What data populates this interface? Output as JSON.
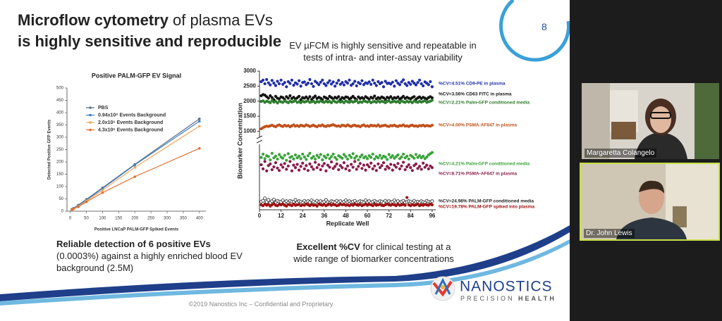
{
  "slide": {
    "title_bold": "Microflow cytometry",
    "title_rest": " of plasma EVs",
    "title_line2": "is highly sensitive and reproducible",
    "page_number": "8",
    "left_note": {
      "bold": "Reliable detection of 6 positive EVs",
      "text": "(0.0003%) against a highly enriched blood EV background (2.5M)"
    },
    "right_heading": "EV µFCM is highly sensitive and repeatable in tests of intra- and inter-assay variability",
    "right_note": {
      "bold": "Excellent %CV",
      "text": " for clinical testing at a wide range of biomarker concentrations"
    },
    "logo": {
      "name": "NANOSTICS",
      "tagline": "PRECISION",
      "tagline_bold": "HEALTH"
    },
    "footer": "©2019 Nanostics Inc – Confidential and Proprietary"
  },
  "chart_data": [
    {
      "type": "line",
      "title": "Positive PALM-GFP EV Signal",
      "x_label": "Positive LNCaP PALM-GFP Spiked Events",
      "y_label": "Detected Positive GFP Events",
      "x": [
        5,
        10,
        25,
        50,
        100,
        200,
        400
      ],
      "xlim": [
        -10,
        420
      ],
      "xticks": [
        0,
        50,
        100,
        150,
        200,
        250,
        300,
        350,
        400
      ],
      "ylim": [
        0,
        500
      ],
      "yticks": [
        0,
        50,
        100,
        150,
        200,
        250,
        300,
        350,
        400,
        450,
        500
      ],
      "legend": "upper-left",
      "series": [
        {
          "name": "PBS",
          "color": "#5b6e86",
          "values": [
            8,
            12,
            25,
            48,
            95,
            190,
            375
          ]
        },
        {
          "name": "0.94x10⁶ Events Background",
          "color": "#3b7fc4",
          "values": [
            7,
            11,
            22,
            45,
            92,
            188,
            365
          ]
        },
        {
          "name": "2.0x10⁶ Events Background",
          "color": "#f2a65a",
          "values": [
            6,
            10,
            20,
            42,
            85,
            178,
            345
          ]
        },
        {
          "name": "4.3x10⁶ Events Background",
          "color": "#e0702c",
          "values": [
            5,
            9,
            18,
            38,
            75,
            140,
            255
          ]
        }
      ]
    },
    {
      "type": "scatter",
      "y_label": "Biomarker Concentration",
      "x_label": "Replicate Well",
      "x": [
        1,
        2,
        3,
        4,
        5,
        6,
        7,
        8,
        9,
        10,
        11,
        12,
        13,
        14,
        15,
        16,
        17,
        18,
        19,
        20,
        21,
        22,
        23,
        24,
        25,
        26,
        27,
        28,
        29,
        30,
        31,
        32,
        33,
        34,
        35,
        36,
        37,
        38,
        39,
        40,
        41,
        42,
        43,
        44,
        45,
        46,
        47,
        48,
        49,
        50,
        51,
        52,
        53,
        54,
        55,
        56,
        57,
        58,
        59,
        60,
        61,
        62,
        63,
        64,
        65,
        66,
        67,
        68,
        69,
        70,
        71,
        72,
        73,
        74,
        75,
        76,
        77,
        78,
        79,
        80,
        81,
        82,
        83,
        84,
        85,
        86,
        87,
        88,
        89,
        90,
        91,
        92,
        93,
        94,
        95,
        96
      ],
      "xlim": [
        0,
        98
      ],
      "xticks": [
        0,
        12,
        24,
        36,
        48,
        60,
        72,
        84,
        96
      ],
      "ylim": [
        800,
        3000
      ],
      "yticks": [
        1000,
        1500,
        2000,
        2500,
        3000
      ],
      "series": [
        {
          "name": "%CV=4.51% CD9-PE in plasma",
          "color": "#1f2fa8",
          "values": [
            2650,
            2700,
            2580,
            2720,
            2610,
            2540,
            2690,
            2600,
            2520,
            2660,
            2580,
            2700,
            2560,
            2620,
            2480,
            2650,
            2590,
            2700,
            2530,
            2610,
            2570,
            2680,
            2500,
            2620,
            2640,
            2550,
            2600,
            2720,
            2580,
            2490,
            2660,
            2610,
            2550,
            2630,
            2700,
            2580,
            2520,
            2610,
            2680,
            2570,
            2640,
            2500,
            2600,
            2690,
            2560,
            2620,
            2540,
            2650,
            2600,
            2700,
            2530,
            2580,
            2660,
            2510,
            2620,
            2580,
            2680,
            2550,
            2610,
            2590,
            2640,
            2560,
            2700,
            2600,
            2520,
            2650,
            2580,
            2620,
            2480,
            2660,
            2590,
            2600,
            2570,
            2630,
            2500,
            2680,
            2600,
            2550,
            2640,
            2710,
            2580,
            2520,
            2620,
            2560,
            2660,
            2600,
            2540,
            2620,
            2700,
            2580,
            2510,
            2640,
            2600,
            2550,
            2650,
            2480
          ]
        },
        {
          "name": "%CV=3.56% CD63 FITC in plasma",
          "color": "#111111",
          "values": [
            2180,
            2220,
            2200,
            2150,
            2100,
            2180,
            2120,
            2050,
            2160,
            2100,
            2080,
            2140,
            2120,
            2060,
            2150,
            2100,
            2180,
            2090,
            2130,
            2070,
            2110,
            2160,
            2050,
            2120,
            2100,
            2140,
            2080,
            2150,
            2060,
            2120,
            2170,
            2090,
            2130,
            2100,
            2050,
            2140,
            2110,
            2080,
            2160,
            2120,
            2070,
            2130,
            2100,
            2150,
            2060,
            2120,
            2090,
            2140,
            2130,
            2070,
            2110,
            2160,
            2100,
            2050,
            2140,
            2090,
            2120,
            2080,
            2150,
            2110,
            2060,
            2130,
            2100,
            2170,
            2080,
            2120,
            2090,
            2140,
            2110,
            2060,
            2130,
            2100,
            2150,
            2080,
            2120,
            2100,
            2140,
            2070,
            2110,
            2160,
            2090,
            2130,
            2100,
            2080,
            2120,
            2150,
            2060,
            2110,
            2140,
            2090,
            2130,
            2100,
            2070,
            2120,
            2150,
            2110
          ]
        },
        {
          "name": "%CV=2.21% Palm-GFP conditioned media",
          "color": "#2e7d2e",
          "values": [
            1990,
            2010,
            1960,
            2000,
            1980,
            1950,
            2020,
            1970,
            1990,
            1940,
            2000,
            1980,
            1960,
            2010,
            1980,
            1950,
            2000,
            1970,
            1990,
            2020,
            1960,
            1980,
            1950,
            2000,
            1970,
            1990,
            2010,
            1960,
            1980,
            2000,
            1950,
            1990,
            1970,
            2010,
            1980,
            1960,
            2000,
            1970,
            1990,
            1950,
            2020,
            1980,
            1960,
            2000,
            1970,
            1990,
            1950,
            2010,
            1980,
            1960,
            2000,
            1970,
            1990,
            2020,
            1950,
            1980,
            1960,
            2010,
            1990,
            1970,
            2000,
            1950,
            1980,
            1990,
            1960,
            2010,
            1970,
            2000,
            1980,
            1950,
            1990,
            2010,
            1960,
            1980,
            2000,
            1970,
            1990,
            1950,
            2010,
            1980,
            1960,
            2000,
            1970,
            1990,
            1950,
            2010,
            1980,
            1960,
            2000,
            1970,
            1990,
            2020,
            1960,
            1980,
            2000,
            2030
          ]
        },
        {
          "name": "%CV=4.00% PSMA-AF647 in plasma",
          "color": "#c0501a",
          "values": [
            1080,
            1120,
            1150,
            1170,
            1160,
            1180,
            1200,
            1170,
            1150,
            1190,
            1210,
            1180,
            1160,
            1200,
            1170,
            1190,
            1150,
            1180,
            1210,
            1170,
            1190,
            1160,
            1200,
            1180,
            1170,
            1210,
            1190,
            1160,
            1180,
            1200,
            1170,
            1150,
            1190,
            1180,
            1210,
            1170,
            1160,
            1190,
            1180,
            1200,
            1220,
            1190,
            1170,
            1180,
            1160,
            1200,
            1190,
            1170,
            1210,
            1180,
            1160,
            1190,
            1200,
            1170,
            1180,
            1150,
            1190,
            1210,
            1170,
            1180,
            1160,
            1200,
            1180,
            1190,
            1170,
            1210,
            1160,
            1180,
            1190,
            1200,
            1170,
            1160,
            1190,
            1180,
            1200,
            1170,
            1160,
            1190,
            1180,
            1210,
            1170,
            1180,
            1160,
            1190,
            1200,
            1170,
            1180,
            1160,
            1190,
            1180,
            1200,
            1170,
            1190,
            1180,
            1170,
            1200
          ]
        }
      ]
    },
    {
      "type": "scatter",
      "ylim": [
        0,
        160
      ],
      "series": [
        {
          "name": "%CV=4.21% Palm-GFP conditioned media",
          "color": "#3aa33a",
          "values": [
            128,
            136,
            125,
            132,
            130,
            122,
            138,
            127,
            131,
            124,
            135,
            129,
            126,
            133,
            121,
            137,
            128,
            130,
            124,
            134,
            127,
            131,
            125,
            136,
            129,
            123,
            132,
            138,
            126,
            130,
            124,
            133,
            128,
            135,
            122,
            131,
            127,
            134,
            125,
            130,
            136,
            128,
            123,
            132,
            129,
            126,
            135,
            130,
            124,
            133,
            128,
            137,
            126,
            131,
            122,
            129,
            134,
            127,
            130,
            125,
            132,
            128,
            136,
            124,
            130,
            127,
            133,
            126,
            131,
            129,
            123,
            135,
            128,
            132,
            126,
            130,
            134,
            125,
            129,
            136,
            127,
            131,
            124,
            133,
            130,
            126,
            135,
            128,
            132,
            127,
            131,
            125,
            129,
            134,
            137,
            140
          ]
        },
        {
          "name": "%CV=8.71% PSMA-AF647 in plasma",
          "color": "#8b1a4a",
          "values": [
            110,
            100,
            118,
            95,
            108,
            112,
            98,
            105,
            115,
            102,
            96,
            110,
            104,
            113,
            99,
            107,
            118,
            95,
            109,
            103,
            111,
            97,
            106,
            114,
            100,
            108,
            96,
            112,
            105,
            99,
            116,
            103,
            110,
            98,
            107,
            113,
            95,
            109,
            104,
            117,
            101,
            106,
            112,
            98,
            108,
            103,
            115,
            100,
            107,
            96,
            111,
            104,
            118,
            99,
            106,
            113,
            101,
            109,
            97,
            110,
            105,
            114,
            100,
            107,
            96,
            112,
            103,
            108,
            115,
            99,
            106,
            102,
            111,
            97,
            109,
            104,
            113,
            100,
            107,
            116,
            98,
            105,
            110,
            103,
            96,
            108,
            112,
            101,
            106,
            99,
            114,
            104,
            109,
            100,
            107,
            103
          ]
        },
        {
          "name": "%CV=24.98% PALM-GFP conditioned media",
          "color": "#222222",
          "marker": "open",
          "values": [
            20,
            22,
            28,
            19,
            24,
            17,
            21,
            25,
            18,
            22,
            20,
            19,
            23,
            18,
            21,
            17,
            22,
            20,
            19,
            24,
            18,
            21,
            20,
            17,
            22,
            19,
            21,
            18,
            23,
            20,
            17,
            22,
            19,
            21,
            18,
            20,
            24,
            19,
            17,
            21,
            20,
            18,
            22,
            19,
            21,
            17,
            20,
            23,
            19,
            21,
            18,
            20,
            22,
            17,
            19,
            21,
            20,
            18,
            23,
            19,
            21,
            17,
            20,
            22,
            19,
            18,
            21,
            20,
            17,
            22,
            19,
            21,
            18,
            20,
            23,
            19,
            21,
            17,
            20,
            22,
            18,
            19,
            21,
            20,
            17,
            22,
            19,
            20,
            18,
            21,
            19,
            17,
            22,
            20,
            18,
            21
          ]
        },
        {
          "name": "%CV=19.78% PALM-GFP spiked into plasma",
          "color": "#a01010",
          "values": [
            12,
            10,
            14,
            11,
            13,
            9,
            12,
            15,
            11,
            10,
            13,
            12,
            14,
            11,
            9,
            13,
            12,
            10,
            14,
            11,
            12,
            13,
            10,
            12,
            11,
            14,
            12,
            10,
            13,
            11,
            12,
            9,
            14,
            12,
            11,
            13,
            10,
            12,
            14,
            11,
            13,
            12,
            10,
            11,
            14,
            12,
            13,
            11,
            12,
            10,
            13,
            11,
            14,
            12,
            11,
            13,
            10,
            12,
            14,
            11,
            13,
            12,
            10,
            14,
            11,
            12,
            13,
            11,
            10,
            12,
            14,
            12,
            11,
            13,
            12,
            10,
            14,
            11,
            12,
            13,
            11,
            30,
            12,
            10,
            13,
            11,
            12,
            14,
            10,
            12,
            11,
            13,
            12,
            11,
            14,
            12
          ]
        }
      ]
    }
  ],
  "participants": [
    {
      "name": "Margaretta Colangelo"
    },
    {
      "name": "Dr. John Lewis"
    }
  ]
}
